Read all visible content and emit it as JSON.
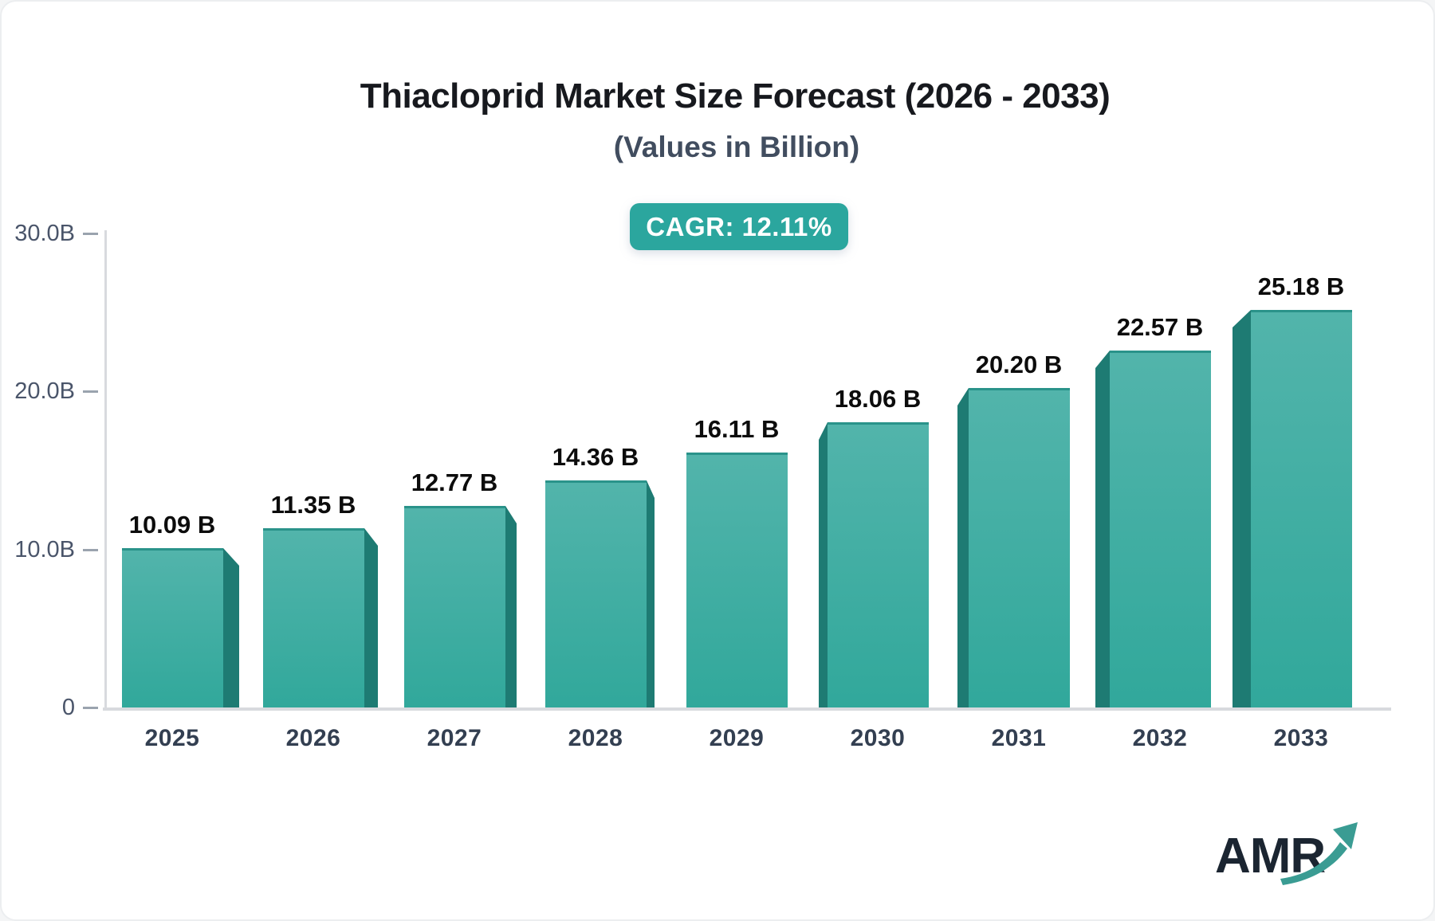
{
  "chart": {
    "title": "Thiacloprid Market Size Forecast (2026 - 2033)",
    "subtitle": "(Values in Billion)",
    "cagr_badge": "CAGR: 12.11%"
  },
  "chart_data": {
    "type": "bar",
    "title": "Thiacloprid Market Size Forecast (2026 - 2033)",
    "subtitle": "(Values in Billion)",
    "cagr": "12.11%",
    "categories": [
      "2025",
      "2026",
      "2027",
      "2028",
      "2029",
      "2030",
      "2031",
      "2032",
      "2033"
    ],
    "values": [
      10.09,
      11.35,
      12.77,
      14.36,
      16.11,
      18.06,
      20.2,
      22.57,
      25.18
    ],
    "value_labels": [
      "10.09 B",
      "11.35 B",
      "12.77 B",
      "14.36 B",
      "16.11 B",
      "18.06 B",
      "20.20 B",
      "22.57 B",
      "25.18 B"
    ],
    "y_ticks": [
      {
        "label": "30.0B",
        "value": 30
      },
      {
        "label": "20.0B",
        "value": 20
      },
      {
        "label": "10.0B",
        "value": 10
      },
      {
        "label": "0",
        "value": 0
      }
    ],
    "ylim": [
      0,
      30
    ],
    "xlabel": "",
    "ylabel": "",
    "grid": false,
    "legend": "none",
    "style": "3d-perspective-bars"
  },
  "brand": {
    "name": "AMR"
  },
  "colors": {
    "accent": "#2ba69e",
    "bar_face_top": "#52b4ab",
    "bar_face_bottom": "#31a89b",
    "bar_top_edge": "#2a938a",
    "bar_side": "#1e7b73",
    "axis": "#d8dade",
    "logo_navy": "#1b2531",
    "logo_teal": "#3a9c93"
  }
}
